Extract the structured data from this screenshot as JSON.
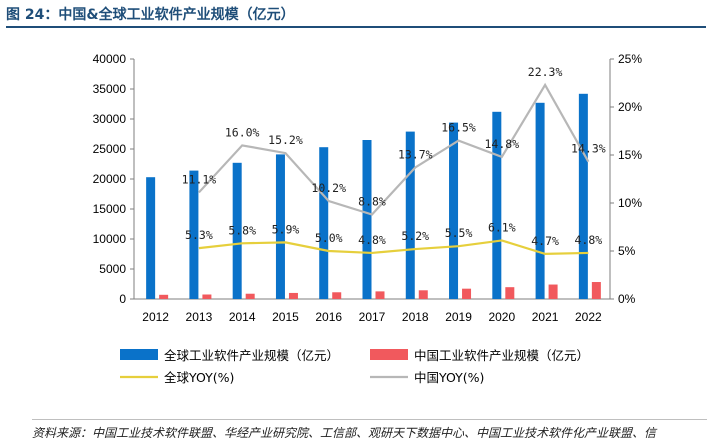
{
  "figure": {
    "title": "图 24：中国&全球工业软件产业规模（亿元）",
    "source": "资料来源：中国工业技术软件联盟、华经产业研究院、工信部、观研天下数据中心、中国工业技术软件化产业联盟、信"
  },
  "colors": {
    "global_bar": "#0a72c9",
    "china_bar": "#f1595d",
    "global_yoy": "#e6cf3c",
    "china_yoy": "#b7b7b7",
    "title": "#1f4e79"
  },
  "chart_data": {
    "type": "bar",
    "categories": [
      "2012",
      "2013",
      "2014",
      "2015",
      "2016",
      "2017",
      "2018",
      "2019",
      "2020",
      "2021",
      "2022"
    ],
    "series": [
      {
        "name": "全球工业软件产业规模（亿元）",
        "kind": "bar",
        "axis": "left",
        "values": [
          20300,
          21400,
          22700,
          24100,
          25300,
          26500,
          27900,
          29400,
          31200,
          32700,
          34200
        ]
      },
      {
        "name": "中国工业软件产业规模（亿元）",
        "kind": "bar",
        "axis": "left",
        "values": [
          700,
          750,
          880,
          1010,
          1120,
          1270,
          1450,
          1720,
          1970,
          2410,
          2830
        ]
      },
      {
        "name": "全球YOY(%)",
        "kind": "line",
        "axis": "right",
        "values": [
          null,
          5.3,
          5.8,
          5.9,
          5.0,
          4.8,
          5.2,
          5.5,
          6.1,
          4.7,
          4.8
        ],
        "labels": [
          "",
          "5.3%",
          "5.8%",
          "5.9%",
          "5.0%",
          "4.8%",
          "5.2%",
          "5.5%",
          "6.1%",
          "4.7%",
          "4.8%"
        ]
      },
      {
        "name": "中国YOY(%)",
        "kind": "line",
        "axis": "right",
        "values": [
          null,
          11.1,
          16.0,
          15.2,
          10.2,
          8.8,
          13.7,
          16.5,
          14.8,
          22.3,
          14.3
        ],
        "labels": [
          "",
          "11.1%",
          "16.0%",
          "15.2%",
          "10.2%",
          "8.8%",
          "13.7%",
          "16.5%",
          "14.8%",
          "22.3%",
          "14.3%"
        ]
      }
    ],
    "y_left": {
      "min": 0,
      "max": 40000,
      "ticks": [
        "0",
        "5000",
        "10000",
        "15000",
        "20000",
        "25000",
        "30000",
        "35000",
        "40000"
      ]
    },
    "y_right": {
      "min": 0,
      "max": 25,
      "ticks": [
        "0%",
        "5%",
        "10%",
        "15%",
        "20%",
        "25%"
      ]
    },
    "grid": false,
    "legend_placement": "bottom"
  }
}
